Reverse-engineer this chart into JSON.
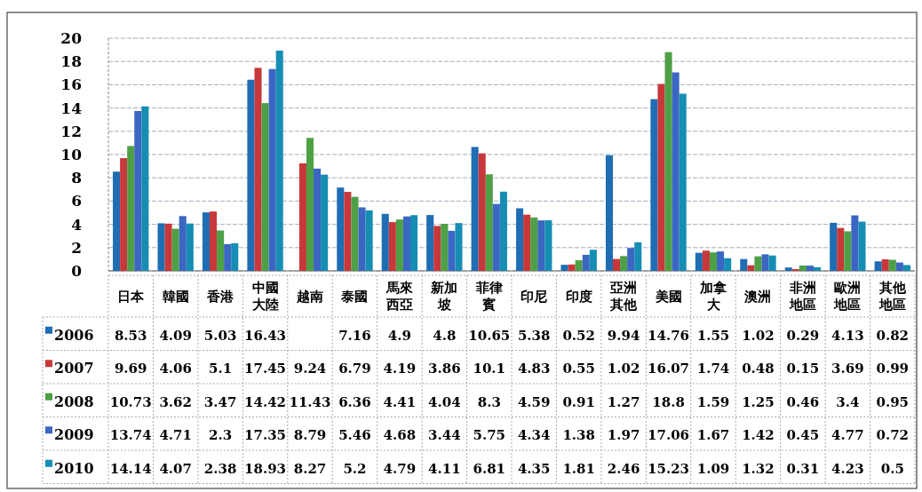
{
  "chart_data": {
    "type": "bar",
    "categories": [
      "日本",
      "韓國",
      "香港",
      "中國大陸",
      "越南",
      "泰國",
      "馬來西亞",
      "新加坡",
      "菲律賓",
      "印尼",
      "印度",
      "亞洲其他",
      "美國",
      "加拿大",
      "澳洲",
      "非洲地區",
      "歐洲地區",
      "其他地區"
    ],
    "series": [
      {
        "name": "2006",
        "color": "#1f6db3",
        "values": [
          8.53,
          4.09,
          5.03,
          16.43,
          null,
          7.16,
          4.9,
          4.8,
          10.65,
          5.38,
          0.52,
          9.94,
          14.76,
          1.55,
          1.02,
          0.29,
          4.13,
          0.82
        ]
      },
      {
        "name": "2007",
        "color": "#c8383a",
        "values": [
          9.69,
          4.06,
          5.1,
          17.45,
          9.24,
          6.79,
          4.19,
          3.86,
          10.1,
          4.83,
          0.55,
          1.02,
          16.07,
          1.74,
          0.48,
          0.15,
          3.69,
          0.99
        ]
      },
      {
        "name": "2008",
        "color": "#4ea046",
        "values": [
          10.73,
          3.62,
          3.47,
          14.42,
          11.43,
          6.36,
          4.41,
          4.04,
          8.3,
          4.59,
          0.91,
          1.27,
          18.8,
          1.59,
          1.25,
          0.46,
          3.4,
          0.95
        ]
      },
      {
        "name": "2009",
        "color": "#3b67c2",
        "values": [
          13.74,
          4.71,
          2.3,
          17.35,
          8.79,
          5.46,
          4.68,
          3.44,
          5.75,
          4.34,
          1.38,
          1.97,
          17.06,
          1.67,
          1.42,
          0.45,
          4.77,
          0.72
        ]
      },
      {
        "name": "2010",
        "color": "#168db3",
        "values": [
          14.14,
          4.07,
          2.38,
          18.93,
          8.27,
          5.2,
          4.79,
          4.11,
          6.81,
          4.35,
          1.81,
          2.46,
          15.23,
          1.09,
          1.32,
          0.31,
          4.23,
          0.5
        ]
      }
    ],
    "ylim": [
      0,
      20
    ],
    "yticks": [
      0,
      2,
      4,
      6,
      8,
      10,
      12,
      14,
      16,
      18,
      20
    ],
    "grid": "y",
    "legend": "bottom",
    "data_labels": true
  }
}
